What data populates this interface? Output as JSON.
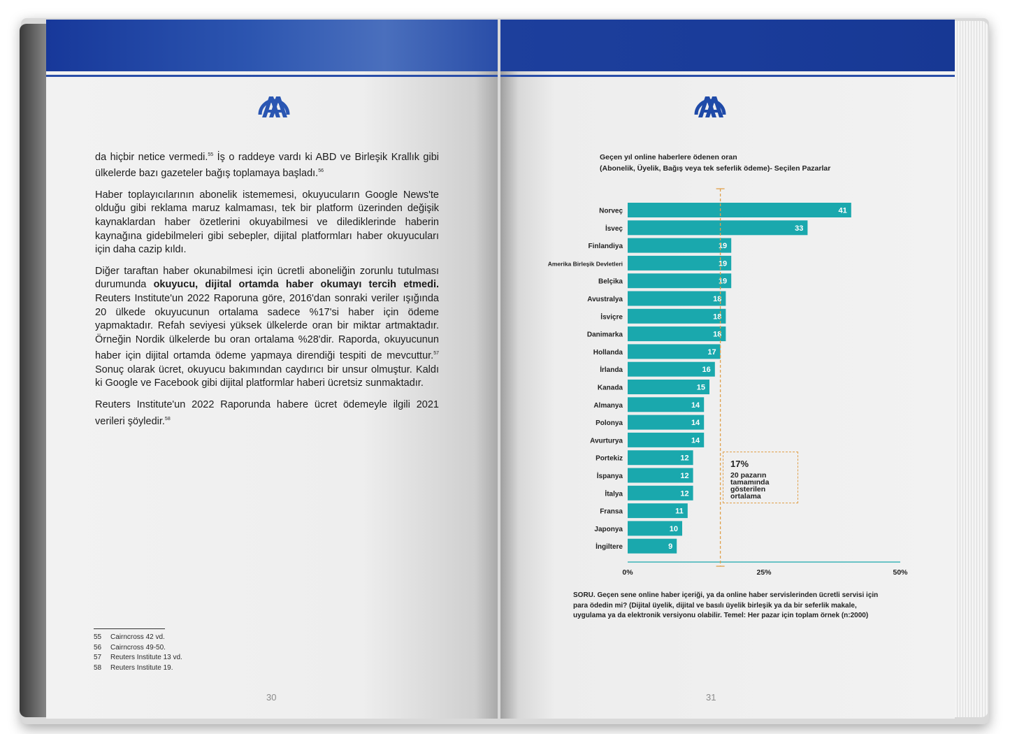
{
  "left_page": {
    "paragraph_1": "da hiçbir netice vermedi.",
    "sup_55": "55",
    "paragraph_1b": " İş o raddeye vardı ki ABD ve Birleşik Krallık gibi ülkelerde bazı gazeteler bağış toplamaya başladı.",
    "sup_56": "56",
    "paragraph_2": "Haber toplayıcılarının abonelik istememesi, okuyucuların Google News'te olduğu gibi reklama maruz kalmaması, tek bir platform üzerinden değişik kaynaklardan haber özetlerini okuyabilmesi ve dilediklerinde haberin kaynağına gidebilmeleri gibi sebepler, dijital platformları haber okuyucuları için daha cazip kıldı.",
    "paragraph_3a": "Diğer taraftan haber okunabilmesi için ücretli aboneliğin zorunlu tutulması durumunda ",
    "paragraph_3_bold": "okuyucu, dijital ortamda haber okumayı tercih etmedi.",
    "paragraph_3b": " Reuters Institute'un 2022 Raporuna göre, 2016'dan sonraki veriler ışığında 20 ülkede okuyucunun ortalama sadece %17'si haber için ödeme yapmaktadır. Refah seviyesi yüksek ülkelerde oran bir miktar artmaktadır. Örneğin Nordik ülkelerde bu oran ortalama %28'dir. Raporda, okuyucunun haber için dijital ortamda ödeme yapmaya direndiği tespiti de mevcuttur.",
    "sup_57": "57",
    "paragraph_3c": " Sonuç olarak ücret, okuyucu bakımından caydırıcı bir unsur olmuştur. Kaldı ki Google ve Facebook gibi dijital platformlar haberi ücretsiz sunmaktadır.",
    "paragraph_4": "Reuters Institute'un 2022 Raporunda habere ücret ödemeyle ilgili 2021 verileri şöyledir.",
    "sup_58": "58",
    "footnotes": [
      {
        "n": "55",
        "text": "Cairncross 42 vd."
      },
      {
        "n": "56",
        "text": "Cairncross 49-50."
      },
      {
        "n": "57",
        "text": "Reuters Institute 13 vd."
      },
      {
        "n": "58",
        "text": "Reuters Institute 19."
      }
    ],
    "page_number": "30"
  },
  "right_page": {
    "chart_title": "Geçen yıl online haberlere ödenen oran",
    "chart_subtitle": "(Abonelik, Üyelik, Bağış veya tek seferlik ödeme)- Seçilen Pazarlar",
    "average_value": "17%",
    "average_text": "20 pazarın tamamında gösterilen ortalama",
    "question": "SORU. Geçen sene online haber içeriği, ya da online haber servislerinden ücretli servisi için para ödedin mi? (Dijital üyelik, dijital ve basılı üyelik birleşik ya da bir seferlik makale, uygulama ya da elektronik versiyonu olabilir. Temel: Her pazar için toplam örnek (n:2000)",
    "page_number": "31"
  },
  "colors": {
    "bar": "#1aa8ad",
    "average_line": "#e0a04a",
    "header_band": "#1d3f9c"
  },
  "chart_data": {
    "type": "bar",
    "orientation": "horizontal",
    "title": "Geçen yıl online haberlere ödenen oran",
    "subtitle": "(Abonelik, Üyelik, Bağış veya tek seferlik ödeme)- Seçilen Pazarlar",
    "categories": [
      "Norveç",
      "İsveç",
      "Finlandiya",
      "Amerika Birleşik Devletleri",
      "Belçika",
      "Avustralya",
      "İsviçre",
      "Danimarka",
      "Hollanda",
      "İrlanda",
      "Kanada",
      "Almanya",
      "Polonya",
      "Avurturya",
      "Portekiz",
      "İspanya",
      "İtalya",
      "Fransa",
      "Japonya",
      "İngiltere"
    ],
    "values": [
      41,
      33,
      19,
      19,
      19,
      18,
      18,
      18,
      17,
      16,
      15,
      14,
      14,
      14,
      12,
      12,
      12,
      11,
      10,
      9
    ],
    "x_ticks": [
      "0%",
      "25%",
      "50%"
    ],
    "xlim": [
      0,
      50
    ],
    "reference_line": 17,
    "legend": "none",
    "grid": false
  }
}
